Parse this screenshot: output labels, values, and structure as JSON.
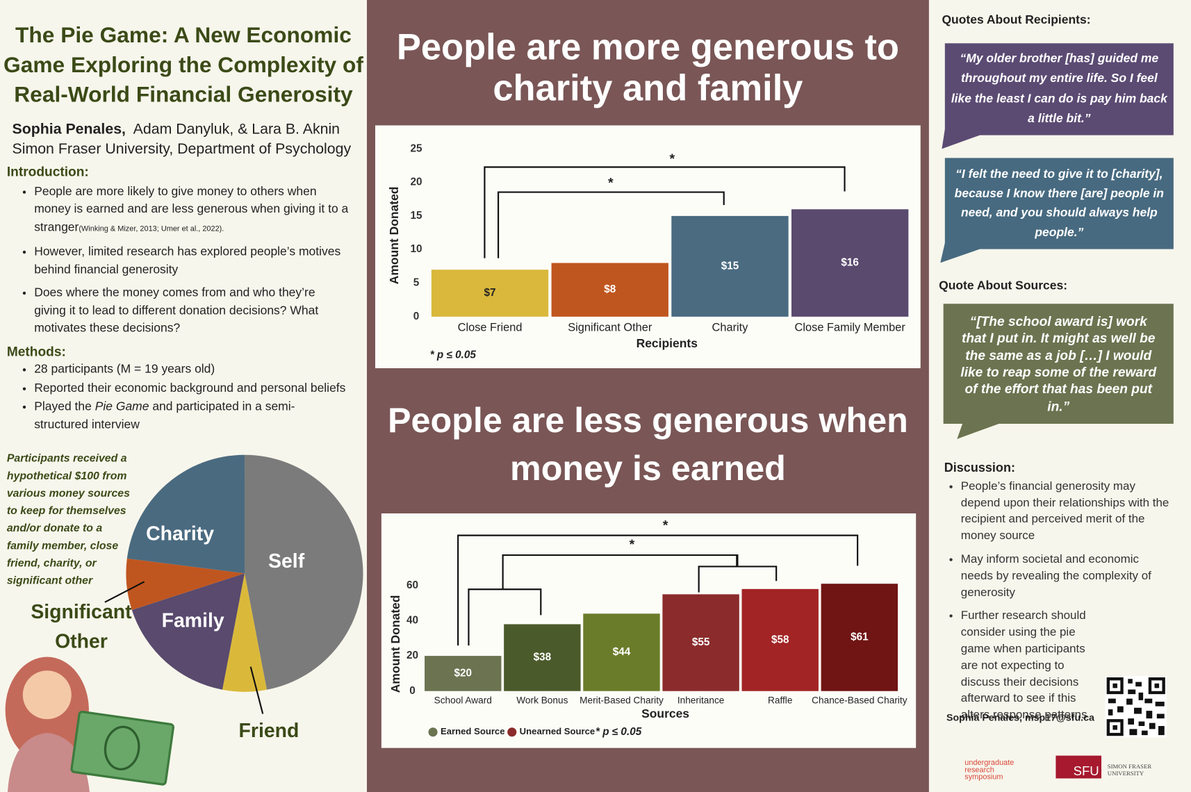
{
  "header": {
    "title": "The Pie Game: A New Economic Game Exploring the Complexity of Real-World Financial Generosity",
    "lead_author": "Sophia Penales,",
    "other_authors": "Adam Danyluk, & Lara B. Aknin",
    "affiliation": "Simon Fraser University, Department of Psychology"
  },
  "introduction": {
    "heading": "Introduction:",
    "bullets": [
      "People are more likely to give money to others when money is earned and are less generous when giving it to a stranger",
      "However, limited research has explored people’s motives behind financial generosity",
      "Does where the money comes from and who they’re giving it to lead to different donation decisions? What motivates these decisions?"
    ],
    "citation": "(Winking & Mizer, 2013; Umer et al., 2022)."
  },
  "methods": {
    "heading": "Methods:",
    "bullets": [
      "28 participants (M = 19 years old)",
      "Reported their economic background and personal beliefs",
      [
        "Played the ",
        "Pie Game",
        " and participated in a semi-structured interview"
      ]
    ]
  },
  "pie_caption": "Participants received a hypothetical $100 from various money sources to keep for themselves and/or donate to a family member, close friend, charity, or significant other",
  "headlines": [
    "People are more generous to charity and family",
    "People are less generous when money is earned"
  ],
  "quotes": {
    "recipients_heading": "Quotes About Recipients:",
    "recipients": [
      "“My older brother [has] guided me throughout my entire life. So I feel like the least I can do is pay him back a little bit.”",
      "“I felt the need to give it to [charity], because I know there [are] people in need, and you should always help people.”"
    ],
    "sources_heading": "Quote About Sources:",
    "sources": [
      "“[The school award is] work that I put in. It might as well be the same as a job […] I would like to reap some of the reward of the effort that has been put in.”"
    ]
  },
  "discussion": {
    "heading": "Discussion:",
    "bullets": [
      "People’s financial generosity may depend upon their relationships with the recipient and perceived merit of the money source",
      "May inform societal and economic needs by revealing the complexity of generosity",
      "Further research should consider using the pie game when participants are not expecting to discuss their decisions afterward to see if this alters response patterns"
    ]
  },
  "contact": "Sophia Penales, msp17@sfu.ca",
  "logos": {
    "symposium": "undergraduate research symposium",
    "sfu": "SFU",
    "university": "SIMON FRASER UNIVERSITY"
  },
  "chart_data": [
    {
      "type": "bar",
      "categories": [
        "Close Friend",
        "Significant Other",
        "Charity",
        "Close Family Member"
      ],
      "values": [
        7,
        8,
        15,
        16
      ],
      "value_labels": [
        "$7",
        "$8",
        "$15",
        "$16"
      ],
      "colors": [
        "#d9b83c",
        "#c0561f",
        "#4a6b80",
        "#5a4a6e"
      ],
      "x_label": "Recipients",
      "y_label": "Amount Donated",
      "ylim": [
        0,
        25
      ],
      "yticks": [
        0,
        5,
        10,
        15,
        20,
        25
      ],
      "annotations": [
        "*",
        "*"
      ],
      "footnote": "* p ≤ 0.05"
    },
    {
      "type": "bar",
      "categories": [
        "School Award",
        "Work Bonus",
        "Merit-Based Charity",
        "Inheritance",
        "Raffle",
        "Chance-Based Charity"
      ],
      "series": [
        {
          "name": "Earned Source",
          "color": "#6b7350",
          "colors": [
            "#6b7350",
            "#4b5a2a",
            "#6a7c2a",
            null,
            null,
            null
          ],
          "values": [
            20,
            38,
            44,
            null,
            null,
            null
          ],
          "value_labels": [
            "$20",
            "$38",
            "$44",
            null,
            null,
            null
          ]
        },
        {
          "name": "Unearned Source",
          "color": "#8b2b2b",
          "colors": [
            null,
            null,
            null,
            "#8b2b2b",
            "#a22424",
            "#701414"
          ],
          "values": [
            null,
            null,
            null,
            55,
            58,
            61
          ],
          "value_labels": [
            null,
            null,
            null,
            "$55",
            "$58",
            "$61"
          ]
        }
      ],
      "x_label": "Sources",
      "y_label": "Amount Donated",
      "ylim": [
        0,
        70
      ],
      "yticks": [
        0,
        20,
        40,
        60
      ],
      "annotations": [
        "*",
        "*"
      ],
      "footnote": "* p ≤ 0.05"
    },
    {
      "type": "pie",
      "categories": [
        "Self",
        "Friend",
        "Family",
        "Significant Other",
        "Charity"
      ],
      "values": [
        47,
        6,
        17,
        7,
        23
      ],
      "colors": [
        "#7b7b7b",
        "#dab93a",
        "#594a6e",
        "#c0561f",
        "#4a6a80"
      ]
    }
  ]
}
